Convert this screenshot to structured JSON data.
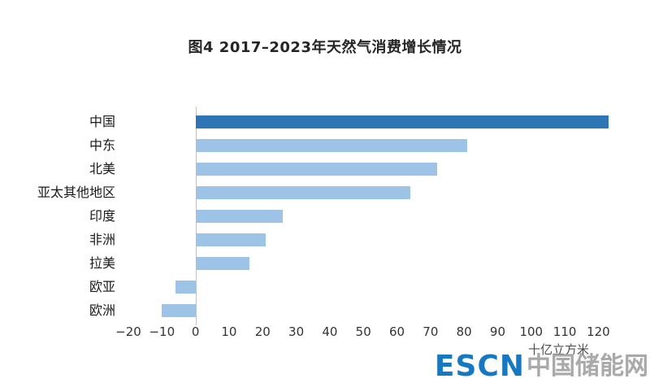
{
  "chart_data": {
    "type": "bar",
    "orientation": "horizontal",
    "title": "图4 2017–2023年天然气消费增长情况",
    "categories": [
      "中国",
      "中东",
      "北美",
      "亚太其他地区",
      "印度",
      "非洲",
      "拉美",
      "欧亚",
      "欧洲"
    ],
    "values": [
      123,
      81,
      72,
      64,
      26,
      21,
      16,
      -6,
      -10
    ],
    "xlabel": "十亿立方米",
    "ylabel": "",
    "xlim": [
      -20,
      132
    ],
    "xticks": [
      -20,
      -10,
      0,
      10,
      20,
      30,
      40,
      50,
      60,
      70,
      80,
      90,
      100,
      110,
      120
    ],
    "grid": "zero-axis-only",
    "legend": "none",
    "bar_colors": {
      "highlight": "#2e75b6",
      "default": "#9dc3e6"
    },
    "highlight_index": 0
  },
  "footer": {
    "logo_text": "ESCN",
    "watermark": "中国储能网"
  }
}
